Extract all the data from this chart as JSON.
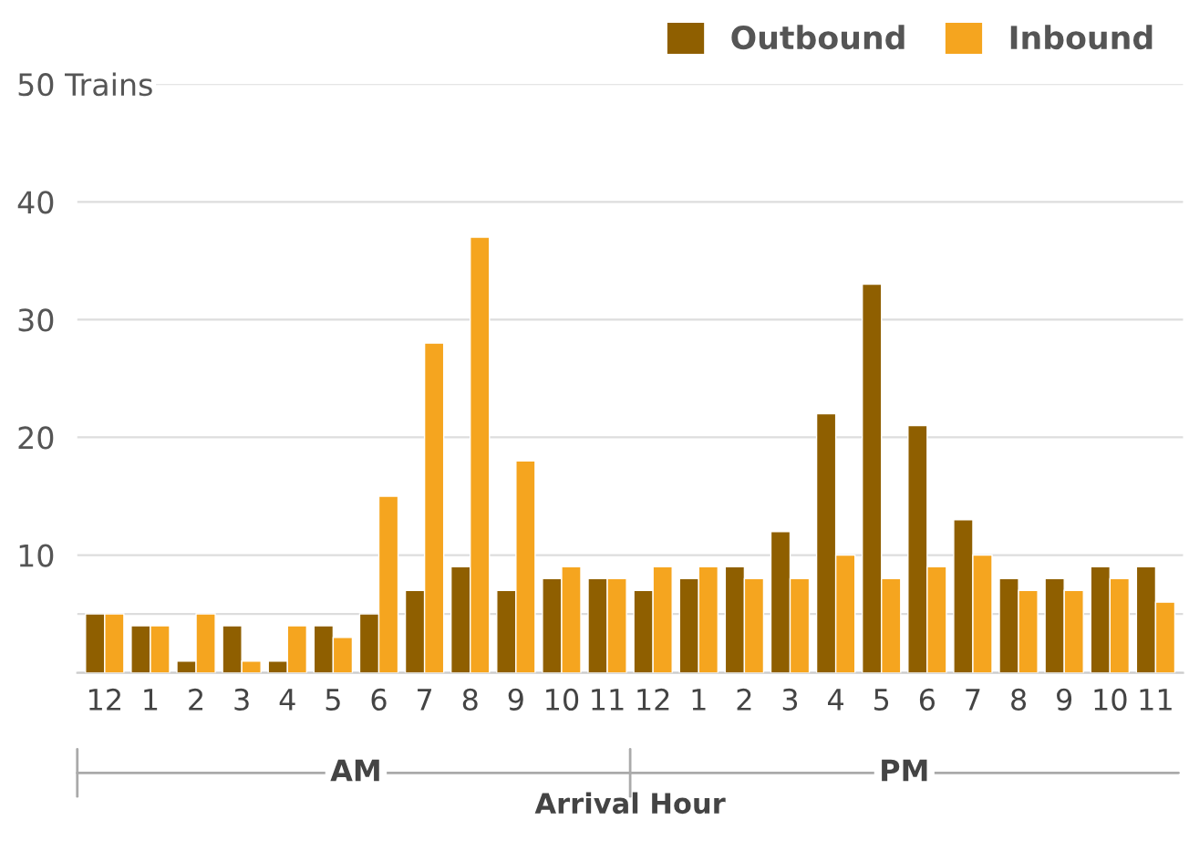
{
  "chart_data": {
    "type": "bar",
    "xlabel": "Arrival Hour",
    "categories": [
      "12",
      "1",
      "2",
      "3",
      "4",
      "5",
      "6",
      "7",
      "8",
      "9",
      "10",
      "11",
      "12",
      "1",
      "2",
      "3",
      "4",
      "5",
      "6",
      "7",
      "8",
      "9",
      "10",
      "11"
    ],
    "series": [
      {
        "name": "Outbound",
        "color": "#8f5f00",
        "values": [
          5,
          4,
          1,
          4,
          1,
          4,
          5,
          7,
          9,
          7,
          8,
          8,
          7,
          8,
          9,
          12,
          22,
          33,
          21,
          13,
          8,
          8,
          9,
          9
        ]
      },
      {
        "name": "Inbound",
        "color": "#f5a51f",
        "values": [
          5,
          4,
          5,
          1,
          4,
          3,
          15,
          28,
          37,
          18,
          9,
          8,
          9,
          9,
          8,
          8,
          10,
          8,
          9,
          10,
          7,
          7,
          8,
          6
        ]
      }
    ],
    "annotations": [
      "AM",
      "PM"
    ],
    "ylim": [
      0,
      50
    ],
    "yticks": [
      {
        "value": 0,
        "label": null
      },
      {
        "value": 5,
        "label": null
      },
      10,
      20,
      30,
      40,
      {
        "value": 50,
        "label": "50 Trains"
      }
    ],
    "grid": "y",
    "legend": "top right"
  }
}
